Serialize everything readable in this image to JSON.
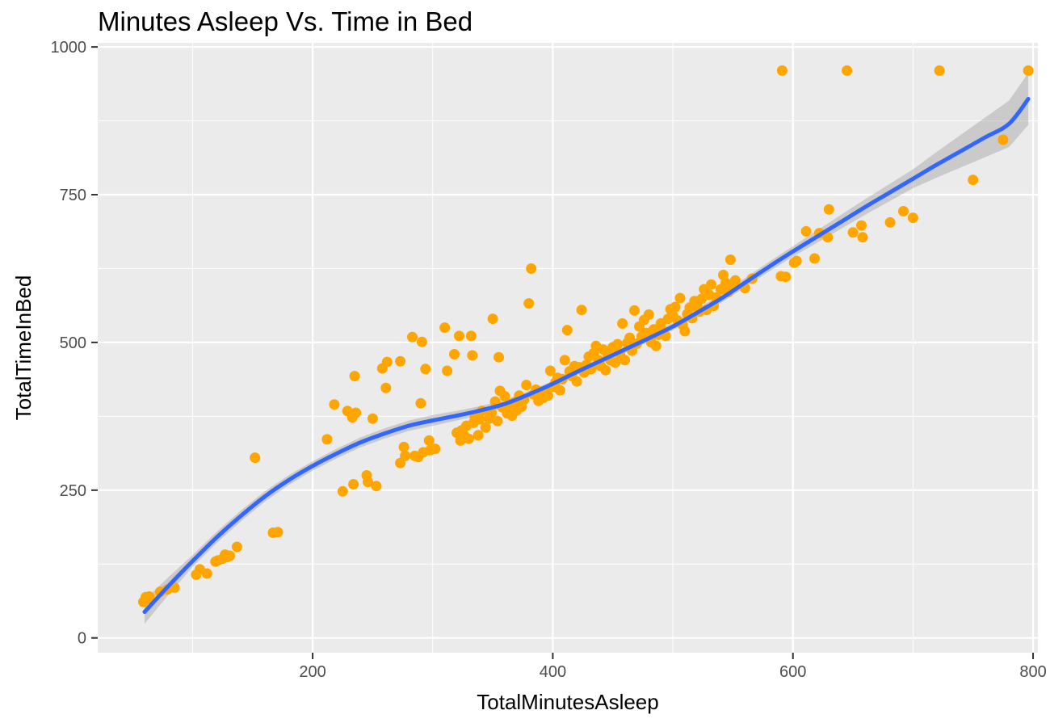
{
  "chart_data": {
    "type": "scatter",
    "title": "Minutes Asleep Vs. Time in Bed",
    "xlabel": "TotalMinutesAsleep",
    "ylabel": "TotalTimeInBed",
    "xlim": [
      21,
      804
    ],
    "ylim": [
      -25,
      1007
    ],
    "xticks": [
      200,
      400,
      600,
      800
    ],
    "yticks": [
      0,
      250,
      500,
      750,
      1000
    ],
    "grid": true,
    "legend": "none",
    "colors": {
      "points": "#FFA500",
      "smooth": "#3366FF",
      "band": "#999999",
      "panel": "#EBEBEB",
      "grid": "#FFFFFF"
    },
    "points": [
      [
        59,
        61
      ],
      [
        61,
        69
      ],
      [
        63,
        66
      ],
      [
        64,
        70
      ],
      [
        73,
        78
      ],
      [
        79,
        82
      ],
      [
        83,
        86
      ],
      [
        85,
        85
      ],
      [
        103,
        107
      ],
      [
        106,
        116
      ],
      [
        112,
        109
      ],
      [
        119,
        129
      ],
      [
        121,
        131
      ],
      [
        125,
        134
      ],
      [
        127,
        141
      ],
      [
        129,
        137
      ],
      [
        131,
        139
      ],
      [
        137,
        154
      ],
      [
        152,
        305
      ],
      [
        167,
        178
      ],
      [
        171,
        179
      ],
      [
        212,
        336
      ],
      [
        218,
        395
      ],
      [
        225,
        248
      ],
      [
        229,
        384
      ],
      [
        233,
        373
      ],
      [
        234,
        260
      ],
      [
        235,
        443
      ],
      [
        236,
        381
      ],
      [
        245,
        275
      ],
      [
        246,
        264
      ],
      [
        250,
        371
      ],
      [
        253,
        257
      ],
      [
        258,
        456
      ],
      [
        261,
        423
      ],
      [
        262,
        467
      ],
      [
        273,
        468
      ],
      [
        273,
        296
      ],
      [
        276,
        323
      ],
      [
        277,
        308
      ],
      [
        283,
        509
      ],
      [
        285,
        308
      ],
      [
        288,
        306
      ],
      [
        290,
        397
      ],
      [
        291,
        501
      ],
      [
        292,
        314
      ],
      [
        294,
        455
      ],
      [
        297,
        334
      ],
      [
        298,
        318
      ],
      [
        302,
        320
      ],
      [
        310,
        525
      ],
      [
        312,
        452
      ],
      [
        318,
        480
      ],
      [
        320,
        347
      ],
      [
        322,
        511
      ],
      [
        323,
        334
      ],
      [
        324,
        351
      ],
      [
        326,
        343
      ],
      [
        328,
        359
      ],
      [
        330,
        337
      ],
      [
        332,
        511
      ],
      [
        333,
        478
      ],
      [
        334,
        364
      ],
      [
        335,
        374
      ],
      [
        338,
        343
      ],
      [
        339,
        370
      ],
      [
        341,
        384
      ],
      [
        344,
        356
      ],
      [
        347,
        371
      ],
      [
        349,
        381
      ],
      [
        350,
        540
      ],
      [
        352,
        400
      ],
      [
        354,
        367
      ],
      [
        355,
        475
      ],
      [
        356,
        418
      ],
      [
        358,
        390
      ],
      [
        360,
        409
      ],
      [
        362,
        380
      ],
      [
        364,
        395
      ],
      [
        366,
        376
      ],
      [
        368,
        398
      ],
      [
        370,
        385
      ],
      [
        372,
        410
      ],
      [
        374,
        391
      ],
      [
        376,
        403
      ],
      [
        378,
        428
      ],
      [
        380,
        566
      ],
      [
        382,
        625
      ],
      [
        384,
        412
      ],
      [
        386,
        420
      ],
      [
        388,
        401
      ],
      [
        390,
        413
      ],
      [
        392,
        406
      ],
      [
        394,
        418
      ],
      [
        396,
        410
      ],
      [
        398,
        452
      ],
      [
        400,
        425
      ],
      [
        402,
        432
      ],
      [
        404,
        440
      ],
      [
        406,
        419
      ],
      [
        408,
        438
      ],
      [
        410,
        470
      ],
      [
        412,
        521
      ],
      [
        414,
        451
      ],
      [
        416,
        443
      ],
      [
        418,
        460
      ],
      [
        420,
        434
      ],
      [
        422,
        458
      ],
      [
        424,
        555
      ],
      [
        426,
        449
      ],
      [
        428,
        462
      ],
      [
        430,
        476
      ],
      [
        432,
        455
      ],
      [
        434,
        482
      ],
      [
        436,
        494
      ],
      [
        438,
        470
      ],
      [
        440,
        460
      ],
      [
        442,
        488
      ],
      [
        444,
        453
      ],
      [
        446,
        478
      ],
      [
        448,
        470
      ],
      [
        450,
        492
      ],
      [
        452,
        466
      ],
      [
        454,
        497
      ],
      [
        456,
        481
      ],
      [
        458,
        532
      ],
      [
        460,
        470
      ],
      [
        462,
        499
      ],
      [
        464,
        508
      ],
      [
        466,
        486
      ],
      [
        468,
        554
      ],
      [
        470,
        498
      ],
      [
        472,
        527
      ],
      [
        474,
        510
      ],
      [
        476,
        538
      ],
      [
        478,
        516
      ],
      [
        480,
        547
      ],
      [
        482,
        500
      ],
      [
        484,
        522
      ],
      [
        486,
        494
      ],
      [
        488,
        513
      ],
      [
        490,
        532
      ],
      [
        492,
        519
      ],
      [
        494,
        511
      ],
      [
        496,
        540
      ],
      [
        498,
        556
      ],
      [
        500,
        546
      ],
      [
        502,
        560
      ],
      [
        504,
        537
      ],
      [
        506,
        575
      ],
      [
        508,
        530
      ],
      [
        510,
        519
      ],
      [
        512,
        548
      ],
      [
        514,
        559
      ],
      [
        516,
        541
      ],
      [
        518,
        570
      ],
      [
        520,
        564
      ],
      [
        522,
        552
      ],
      [
        524,
        574
      ],
      [
        526,
        590
      ],
      [
        528,
        555
      ],
      [
        530,
        581
      ],
      [
        532,
        598
      ],
      [
        534,
        562
      ],
      [
        536,
        576
      ],
      [
        540,
        590
      ],
      [
        542,
        614
      ],
      [
        544,
        601
      ],
      [
        546,
        585
      ],
      [
        548,
        640
      ],
      [
        550,
        596
      ],
      [
        552,
        605
      ],
      [
        560,
        592
      ],
      [
        566,
        608
      ],
      [
        590,
        612
      ],
      [
        591,
        960
      ],
      [
        594,
        611
      ],
      [
        601,
        635
      ],
      [
        603,
        638
      ],
      [
        611,
        688
      ],
      [
        618,
        642
      ],
      [
        622,
        685
      ],
      [
        629,
        678
      ],
      [
        630,
        725
      ],
      [
        645,
        960
      ],
      [
        650,
        686
      ],
      [
        657,
        698
      ],
      [
        658,
        678
      ],
      [
        681,
        703
      ],
      [
        692,
        722
      ],
      [
        700,
        711
      ],
      [
        722,
        960
      ],
      [
        750,
        775
      ],
      [
        775,
        843
      ],
      [
        796,
        960
      ]
    ],
    "smooth": [
      [
        60,
        44
      ],
      [
        80,
        88
      ],
      [
        100,
        130
      ],
      [
        120,
        170
      ],
      [
        140,
        206
      ],
      [
        160,
        239
      ],
      [
        180,
        267
      ],
      [
        200,
        291
      ],
      [
        220,
        312
      ],
      [
        240,
        331
      ],
      [
        260,
        346
      ],
      [
        280,
        359
      ],
      [
        300,
        368
      ],
      [
        320,
        376
      ],
      [
        340,
        385
      ],
      [
        360,
        396
      ],
      [
        380,
        412
      ],
      [
        400,
        430
      ],
      [
        420,
        450
      ],
      [
        440,
        469
      ],
      [
        460,
        488
      ],
      [
        480,
        507
      ],
      [
        500,
        527
      ],
      [
        520,
        550
      ],
      [
        540,
        574
      ],
      [
        560,
        601
      ],
      [
        580,
        628
      ],
      [
        600,
        654
      ],
      [
        620,
        679
      ],
      [
        640,
        704
      ],
      [
        660,
        729
      ],
      [
        680,
        753
      ],
      [
        700,
        777
      ],
      [
        720,
        801
      ],
      [
        740,
        824
      ],
      [
        760,
        847
      ],
      [
        780,
        870
      ],
      [
        796,
        912
      ]
    ],
    "band_halfwidth": [
      [
        60,
        20
      ],
      [
        100,
        10
      ],
      [
        200,
        8
      ],
      [
        300,
        9
      ],
      [
        400,
        5
      ],
      [
        500,
        6
      ],
      [
        600,
        9
      ],
      [
        700,
        16
      ],
      [
        796,
        44
      ]
    ]
  }
}
